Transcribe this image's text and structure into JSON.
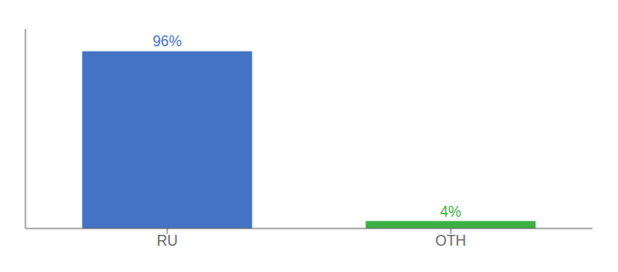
{
  "chart_data": {
    "type": "bar",
    "categories": [
      "RU",
      "OTH"
    ],
    "values": [
      96,
      4
    ],
    "value_labels": [
      "96%",
      "4%"
    ],
    "data_labels": true,
    "colors": [
      "#4472c4",
      "#3cb043"
    ],
    "ylim": [
      0,
      108
    ],
    "tick_labels": "x",
    "grid": false
  }
}
